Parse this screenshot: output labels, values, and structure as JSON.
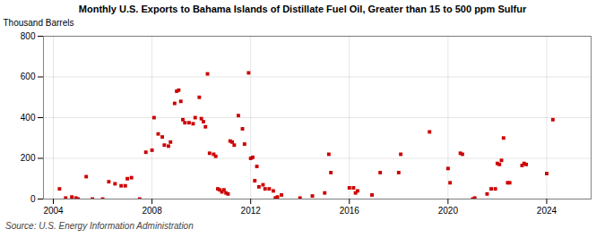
{
  "chart_data": {
    "type": "scatter",
    "title": "Monthly U.S. Exports to Bahama Islands of Distillate Fuel Oil, Greater than 15 to 500 ppm Sulfur",
    "ylabel": "Thousand Barrels",
    "source": "Source: U.S. Energy Information Administration",
    "color": "#cc0000",
    "marker": "square",
    "grid": true,
    "xlim": [
      2003.6,
      2025.8
    ],
    "xticks": [
      2004,
      2008,
      2012,
      2016,
      2020,
      2024
    ],
    "ylim": [
      0,
      800
    ],
    "yticks": [
      0,
      200,
      400,
      600,
      800
    ],
    "x": [
      2004.25,
      2004.5,
      2004.75,
      2004.917,
      2005.0,
      2005.333,
      2005.583,
      2006.0,
      2006.25,
      2006.5,
      2006.75,
      2006.917,
      2007.0,
      2007.167,
      2007.5,
      2007.75,
      2008.0,
      2008.083,
      2008.25,
      2008.417,
      2008.5,
      2008.667,
      2008.75,
      2008.917,
      2009.0,
      2009.083,
      2009.167,
      2009.25,
      2009.333,
      2009.5,
      2009.667,
      2009.75,
      2009.917,
      2010.0,
      2010.083,
      2010.167,
      2010.25,
      2010.333,
      2010.5,
      2010.583,
      2010.667,
      2010.75,
      2010.833,
      2010.917,
      2011.0,
      2011.083,
      2011.167,
      2011.25,
      2011.333,
      2011.5,
      2011.667,
      2011.75,
      2011.917,
      2012.0,
      2012.083,
      2012.167,
      2012.25,
      2012.333,
      2012.5,
      2012.583,
      2012.75,
      2012.917,
      2013.0,
      2013.083,
      2013.25,
      2014.0,
      2014.5,
      2015.0,
      2015.167,
      2015.25,
      2016.0,
      2016.167,
      2016.25,
      2016.333,
      2016.917,
      2017.25,
      2018.0,
      2018.083,
      2019.25,
      2020.0,
      2020.083,
      2020.5,
      2020.583,
      2021.0,
      2021.083,
      2021.583,
      2021.75,
      2021.917,
      2022.0,
      2022.083,
      2022.167,
      2022.25,
      2022.417,
      2022.5,
      2023.0,
      2023.083,
      2023.167,
      2024.0,
      2024.25
    ],
    "values": [
      50,
      5,
      10,
      5,
      0,
      110,
      0,
      0,
      85,
      75,
      65,
      65,
      100,
      105,
      0,
      230,
      240,
      400,
      320,
      305,
      265,
      260,
      280,
      470,
      530,
      535,
      480,
      390,
      375,
      375,
      370,
      400,
      500,
      395,
      380,
      355,
      615,
      225,
      220,
      210,
      50,
      45,
      35,
      45,
      30,
      25,
      285,
      280,
      265,
      410,
      345,
      270,
      620,
      200,
      205,
      90,
      160,
      60,
      70,
      50,
      50,
      40,
      5,
      10,
      20,
      5,
      15,
      30,
      220,
      130,
      55,
      55,
      30,
      40,
      20,
      130,
      130,
      220,
      330,
      150,
      80,
      225,
      220,
      0,
      5,
      25,
      50,
      50,
      175,
      170,
      190,
      300,
      80,
      80,
      165,
      175,
      170,
      125,
      390
    ]
  }
}
